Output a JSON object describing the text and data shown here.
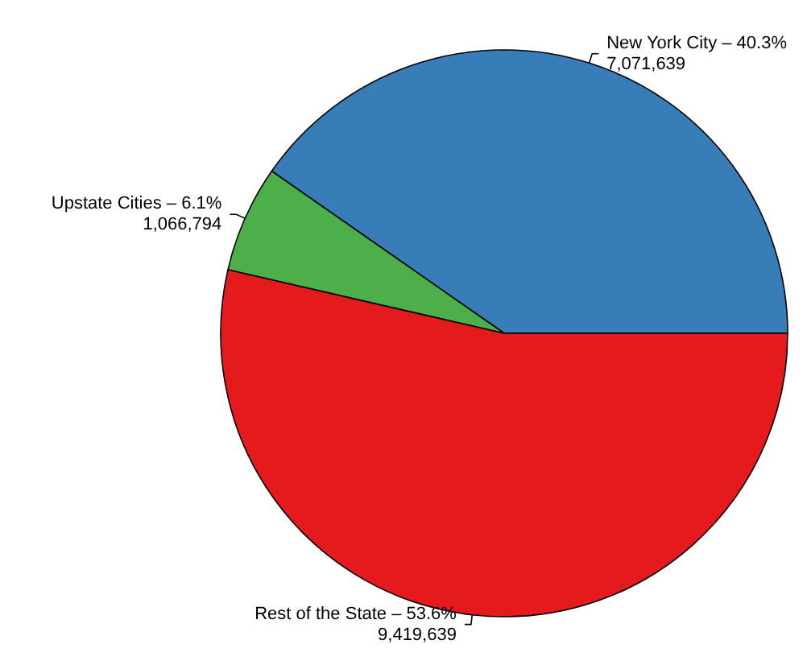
{
  "chart_data": {
    "type": "pie",
    "categories": [
      "New York City",
      "Upstate Cities",
      "Rest of the State"
    ],
    "values": [
      40.3,
      6.1,
      53.6
    ],
    "colors": [
      "#377eb8",
      "#4daf4a",
      "#e41a1c"
    ],
    "value_labels": [
      "40.3%\n7,071,639",
      "6.1%\n1,066,794",
      "53.6%\n9,419,639"
    ],
    "legend": false
  }
}
